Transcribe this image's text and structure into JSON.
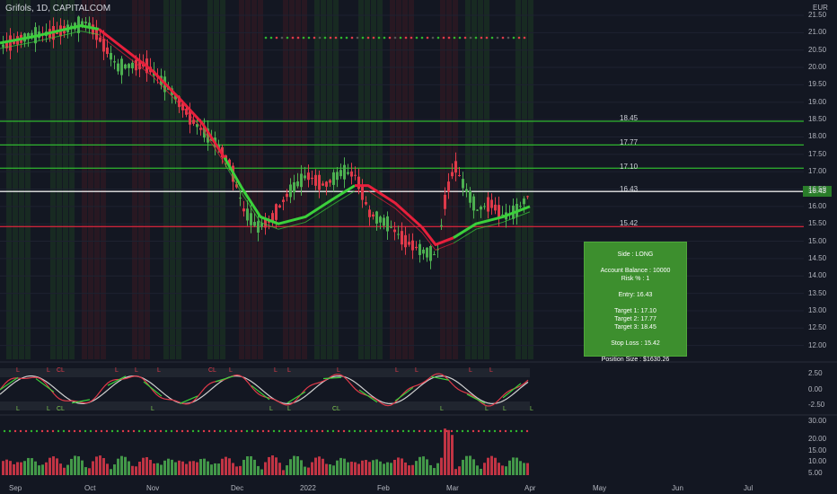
{
  "header": {
    "title": "Grifols, 1D, CAPITALCOM",
    "currency": "EUR"
  },
  "price_axis": [
    "21.50",
    "21.00",
    "20.50",
    "20.00",
    "19.50",
    "19.00",
    "18.50",
    "18.00",
    "17.50",
    "17.00",
    "16.50",
    "16.00",
    "15.50",
    "15.00",
    "14.50",
    "14.00",
    "13.50",
    "13.00",
    "12.50",
    "12.00"
  ],
  "osc_axis": [
    "2.50",
    "0.00",
    "-2.50"
  ],
  "vol_axis": [
    "30.00",
    "20.00",
    "15.00",
    "10.00",
    "5.00",
    "0.00"
  ],
  "time_axis": [
    "Sep",
    "Oct",
    "Nov",
    "Dec",
    "2022",
    "Feb",
    "Mar",
    "Apr",
    "May",
    "Jun",
    "Jul"
  ],
  "levels": [
    {
      "label": "18.45",
      "value": 18.45,
      "color": "#2fb62f"
    },
    {
      "label": "17.77",
      "value": 17.77,
      "color": "#2fb62f"
    },
    {
      "label": "17.10",
      "value": 17.1,
      "color": "#2fb62f"
    },
    {
      "label": "16.43",
      "value": 16.43,
      "color": "#e8e8e8"
    },
    {
      "label": "15.42",
      "value": 15.42,
      "color": "#c8243a"
    }
  ],
  "current_price": "16.43",
  "position_panel": {
    "side": "Side : LONG",
    "balance": "Account Balance : 10000",
    "risk": "Risk % : 1",
    "entry": "Entry: 16.43",
    "target1": "Target 1: 17.10",
    "target2": "Target 2: 17.77",
    "target3": "Target 3: 18.45",
    "stop": "Stop Loss : 15.42",
    "size": "Position Size : $1630.26"
  },
  "osc_labels_top": [
    "L",
    "L",
    "CL",
    "L",
    "L",
    "L",
    "CL",
    "L",
    "L",
    "L",
    "L",
    "L",
    "L",
    "L",
    "L"
  ],
  "osc_labels_bottom": [
    "L",
    "L",
    "CL",
    "L",
    "L",
    "L",
    "CL",
    "L",
    "L",
    "L",
    "L"
  ],
  "colors": {
    "bg": "#131722",
    "up": "#4caf50",
    "down": "#e03a4a",
    "band_up": "#3bd13b",
    "band_down": "#e8203c",
    "panel": "#3d8f2e"
  }
}
